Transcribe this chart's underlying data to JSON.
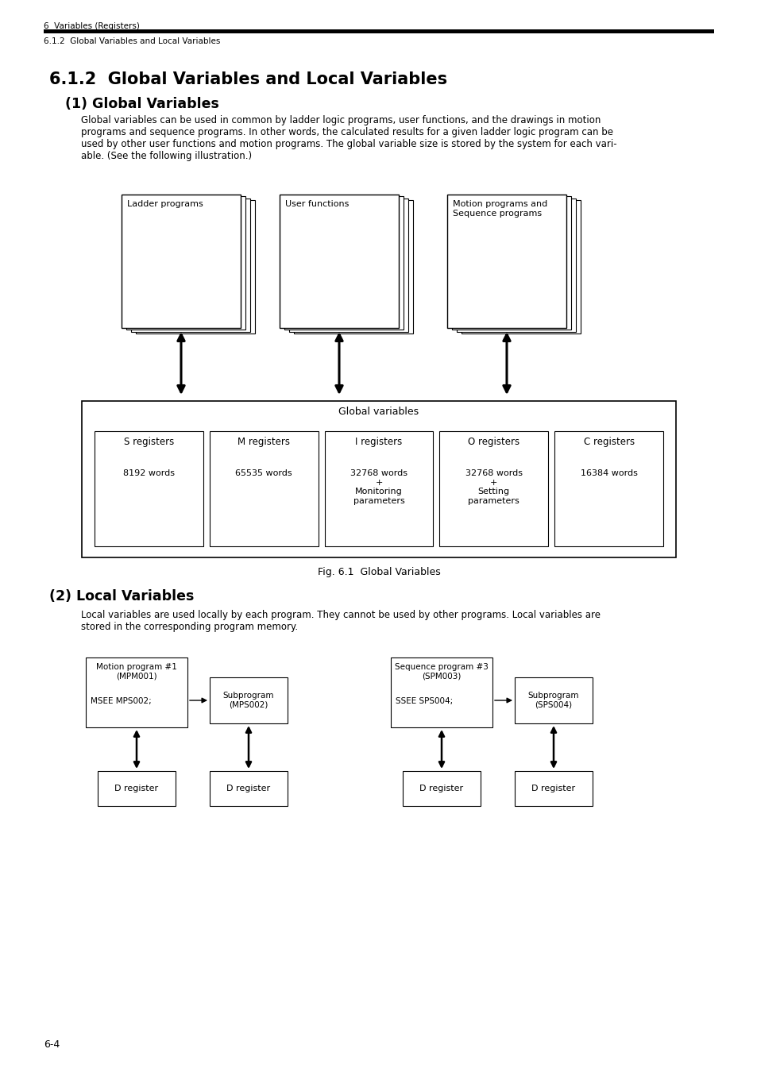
{
  "bg_color": "#ffffff",
  "header_line1": "6  Variables (Registers)",
  "header_line2": "6.1.2  Global Variables and Local Variables",
  "section_title": "6.1.2  Global Variables and Local Variables",
  "subsection1": "(1) Global Variables",
  "subsection1_text": [
    "Global variables can be used in common by ladder logic programs, user functions, and the drawings in motion",
    "programs and sequence programs. In other words, the calculated results for a given ladder logic program can be",
    "used by other user functions and motion programs. The global variable size is stored by the system for each vari-",
    "able. (See the following illustration.)"
  ],
  "fig1_caption": "Fig. 6.1  Global Variables",
  "subsection2": "(2) Local Variables",
  "subsection2_text": [
    "Local variables are used locally by each program. They cannot be used by other programs. Local variables are",
    "stored in the corresponding program memory."
  ],
  "page_number": "6-4",
  "program_group_labels": [
    "Ladder programs",
    "User functions",
    "Motion programs and\nSequence programs"
  ],
  "register_labels": [
    "S registers",
    "M registers",
    "I registers",
    "O registers",
    "C registers"
  ],
  "register_values": [
    "8192 words",
    "65535 words",
    "32768 words\n+\nMonitoring\nparameters",
    "32768 words\n+\nSetting\nparameters",
    "16384 words"
  ],
  "global_vars_label": "Global variables",
  "local_prog1_title": "Motion program #1\n(MPM001)",
  "local_prog1_call": "MSEE MPS002;",
  "local_sub1_label": "Subprogram\n(MPS002)",
  "local_prog2_title": "Sequence program #3\n(SPM003)",
  "local_prog2_call": "SSEE SPS004;",
  "local_sub2_label": "Subprogram\n(SPS004)",
  "d_register_label": "D register"
}
